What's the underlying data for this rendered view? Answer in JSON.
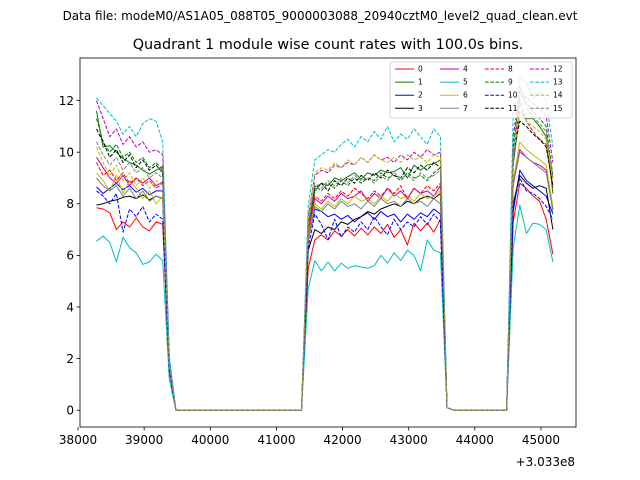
{
  "figure": {
    "suptitle": "Data file: modeM0/AS1A05_088T05_9000003088_20940cztM0_level2_quad_clean.evt",
    "offset_label": "+3.033e8"
  },
  "chart_data": {
    "type": "line",
    "title": "Quadrant 1 module wise count rates with 100.0s bins.",
    "xlabel": "",
    "ylabel": "",
    "x_offset": 303300000,
    "xlim": [
      38030,
      45530
    ],
    "ylim": [
      -0.65,
      13.65
    ],
    "xticks": [
      38000,
      39000,
      40000,
      41000,
      42000,
      43000,
      44000,
      45000
    ],
    "xtick_labels": [
      "38000",
      "39000",
      "40000",
      "41000",
      "42000",
      "43000",
      "44000",
      "45000"
    ],
    "yticks": [
      0,
      2,
      4,
      6,
      8,
      10,
      12
    ],
    "ytick_labels": [
      "0",
      "2",
      "4",
      "6",
      "8",
      "10",
      "12"
    ],
    "grid": false,
    "legend_position": "top-right",
    "legend_columns": 4,
    "x": [
      38280,
      38380,
      38480,
      38580,
      38680,
      38780,
      38880,
      38980,
      39080,
      39180,
      39280,
      39380,
      39480,
      39580,
      39680,
      39780,
      39880,
      39980,
      40080,
      40180,
      40280,
      40380,
      40480,
      40580,
      40680,
      40780,
      40880,
      40980,
      41080,
      41180,
      41280,
      41380,
      41480,
      41580,
      41680,
      41780,
      41880,
      41980,
      42080,
      42180,
      42280,
      42380,
      42480,
      42580,
      42680,
      42780,
      42880,
      42980,
      43080,
      43180,
      43280,
      43380,
      43480,
      43580,
      43680,
      43780,
      43880,
      43980,
      44080,
      44180,
      44280,
      44380,
      44480,
      44580,
      44680,
      44780,
      44880,
      44980,
      45080,
      45180
    ],
    "series": [
      {
        "name": "0",
        "color": "#ff0000",
        "dash": "solid",
        "values": [
          7.85,
          7.8,
          7.65,
          7.0,
          7.3,
          7.1,
          7.45,
          7.1,
          6.95,
          7.3,
          7.2,
          1.6,
          0,
          0,
          0,
          0,
          0,
          0,
          0,
          0,
          0,
          0,
          0,
          0,
          0,
          0,
          0,
          0,
          0,
          0,
          0,
          0,
          5.5,
          6.6,
          6.8,
          6.6,
          6.95,
          6.75,
          7.0,
          6.75,
          7.05,
          6.8,
          7.1,
          6.85,
          7.2,
          6.7,
          7.0,
          6.4,
          7.25,
          6.95,
          7.25,
          6.9,
          7.4,
          0.1,
          0,
          0,
          0,
          0,
          0,
          0,
          0,
          0,
          0,
          7.3,
          8.8,
          8.6,
          8.3,
          8.1,
          7.4,
          6.05
        ]
      },
      {
        "name": "1",
        "color": "#008000",
        "dash": "solid",
        "values": [
          11.6,
          10.2,
          10.25,
          10.0,
          9.75,
          9.6,
          9.5,
          9.3,
          9.15,
          9.3,
          9.45,
          1.9,
          0,
          0,
          0,
          0,
          0,
          0,
          0,
          0,
          0,
          0,
          0,
          0,
          0,
          0,
          0,
          0,
          0,
          0,
          0,
          0,
          7.0,
          8.5,
          8.8,
          8.7,
          9.0,
          8.9,
          9.05,
          9.2,
          8.95,
          9.2,
          9.1,
          9.3,
          9.2,
          9.25,
          9.4,
          9.0,
          9.5,
          9.3,
          9.5,
          9.55,
          9.7,
          0.1,
          0,
          0,
          0,
          0,
          0,
          0,
          0,
          0,
          0,
          9.5,
          11.6,
          11.3,
          11.3,
          11.0,
          10.6,
          8.4
        ]
      },
      {
        "name": "2",
        "color": "#0000ff",
        "dash": "solid",
        "values": [
          8.65,
          8.4,
          8.6,
          8.8,
          8.55,
          8.7,
          8.45,
          8.6,
          8.35,
          8.5,
          8.5,
          1.7,
          0,
          0,
          0,
          0,
          0,
          0,
          0,
          0,
          0,
          0,
          0,
          0,
          0,
          0,
          0,
          0,
          0,
          0,
          0,
          0,
          6.6,
          7.8,
          7.7,
          7.5,
          7.6,
          7.4,
          7.55,
          7.3,
          7.5,
          7.65,
          7.4,
          7.7,
          7.5,
          7.6,
          7.3,
          7.6,
          7.4,
          7.65,
          7.5,
          7.8,
          7.6,
          0.1,
          0,
          0,
          0,
          0,
          0,
          0,
          0,
          0,
          0,
          7.7,
          9.3,
          8.9,
          8.7,
          8.5,
          8.3,
          7.6
        ]
      },
      {
        "name": "3",
        "color": "#000000",
        "dash": "solid",
        "values": [
          7.95,
          8.0,
          8.1,
          8.15,
          8.25,
          8.3,
          8.2,
          8.35,
          8.15,
          8.3,
          8.2,
          1.6,
          0,
          0,
          0,
          0,
          0,
          0,
          0,
          0,
          0,
          0,
          0,
          0,
          0,
          0,
          0,
          0,
          0,
          0,
          0,
          0,
          6.2,
          7.0,
          6.85,
          7.1,
          7.0,
          7.3,
          7.2,
          7.4,
          7.5,
          7.7,
          7.6,
          7.8,
          7.9,
          8.0,
          7.9,
          8.1,
          8.0,
          8.2,
          8.3,
          8.2,
          8.4,
          0.1,
          0,
          0,
          0,
          0,
          0,
          0,
          0,
          0,
          0,
          8.0,
          9.1,
          8.8,
          8.6,
          8.7,
          8.6,
          7.0
        ]
      },
      {
        "name": "4",
        "color": "#bf00bf",
        "dash": "solid",
        "values": [
          9.8,
          9.4,
          9.0,
          8.8,
          9.1,
          8.7,
          9.0,
          8.8,
          9.0,
          8.7,
          8.85,
          1.8,
          0,
          0,
          0,
          0,
          0,
          0,
          0,
          0,
          0,
          0,
          0,
          0,
          0,
          0,
          0,
          0,
          0,
          0,
          0,
          0,
          6.9,
          8.2,
          8.0,
          8.3,
          8.1,
          8.4,
          8.2,
          8.3,
          8.5,
          8.1,
          8.4,
          8.2,
          8.6,
          8.3,
          8.5,
          8.2,
          8.6,
          8.4,
          8.5,
          8.3,
          8.7,
          0.1,
          0,
          0,
          0,
          0,
          0,
          0,
          0,
          0,
          0,
          8.8,
          10.1,
          9.8,
          9.6,
          9.5,
          9.3,
          7.8
        ]
      },
      {
        "name": "5",
        "color": "#00bfbf",
        "dash": "solid",
        "values": [
          6.55,
          6.75,
          6.5,
          5.75,
          6.7,
          6.3,
          6.1,
          5.65,
          5.75,
          6.05,
          5.8,
          1.2,
          0,
          0,
          0,
          0,
          0,
          0,
          0,
          0,
          0,
          0,
          0,
          0,
          0,
          0,
          0,
          0,
          0,
          0,
          0,
          0,
          4.7,
          5.8,
          5.4,
          5.75,
          5.4,
          5.7,
          5.5,
          5.6,
          5.55,
          5.5,
          5.6,
          6.0,
          5.7,
          6.1,
          5.8,
          6.2,
          6.0,
          5.4,
          6.6,
          6.2,
          6.1,
          0.1,
          0,
          0,
          0,
          0,
          0,
          0,
          0,
          0,
          0,
          6.3,
          7.95,
          6.85,
          7.25,
          7.2,
          7.0,
          5.75
        ]
      },
      {
        "name": "6",
        "color": "#bfbf00",
        "dash": "solid",
        "values": [
          9.2,
          8.9,
          8.5,
          9.1,
          8.4,
          8.9,
          8.6,
          8.2,
          8.5,
          8.0,
          8.3,
          1.7,
          0,
          0,
          0,
          0,
          0,
          0,
          0,
          0,
          0,
          0,
          0,
          0,
          0,
          0,
          0,
          0,
          0,
          0,
          0,
          0,
          6.7,
          8.0,
          7.8,
          8.1,
          7.9,
          8.2,
          8.0,
          8.3,
          8.1,
          8.2,
          8.0,
          8.3,
          8.1,
          8.4,
          8.2,
          8.3,
          8.1,
          8.4,
          8.2,
          8.3,
          8.5,
          0.1,
          0,
          0,
          0,
          0,
          0,
          0,
          0,
          0,
          0,
          8.9,
          10.4,
          10.1,
          9.9,
          9.7,
          9.5,
          7.9
        ]
      },
      {
        "name": "7",
        "color": "#808080",
        "dash": "solid",
        "values": [
          9.0,
          8.7,
          8.5,
          8.7,
          8.3,
          8.6,
          8.2,
          8.5,
          8.1,
          8.3,
          8.2,
          1.7,
          0,
          0,
          0,
          0,
          0,
          0,
          0,
          0,
          0,
          0,
          0,
          0,
          0,
          0,
          0,
          0,
          0,
          0,
          0,
          0,
          6.6,
          7.9,
          7.7,
          8.0,
          7.8,
          8.1,
          7.9,
          8.0,
          7.8,
          8.1,
          7.9,
          8.2,
          8.0,
          8.1,
          7.9,
          8.2,
          8.0,
          8.1,
          7.9,
          8.2,
          8.0,
          0.1,
          0,
          0,
          0,
          0,
          0,
          0,
          0,
          0,
          0,
          8.7,
          10.0,
          9.8,
          9.6,
          9.4,
          9.2,
          7.7
        ]
      },
      {
        "name": "8",
        "color": "#ff0000",
        "dash": "dashed",
        "values": [
          9.6,
          9.1,
          9.3,
          8.9,
          9.2,
          8.8,
          9.0,
          8.7,
          8.9,
          8.6,
          8.8,
          1.8,
          0,
          0,
          0,
          0,
          0,
          0,
          0,
          0,
          0,
          0,
          0,
          0,
          0,
          0,
          0,
          0,
          0,
          0,
          0,
          0,
          6.9,
          8.3,
          8.1,
          8.4,
          8.2,
          8.5,
          8.3,
          8.6,
          8.4,
          8.2,
          8.5,
          8.3,
          8.6,
          8.4,
          8.7,
          8.2,
          8.6,
          8.4,
          8.7,
          8.5,
          8.8,
          0.1,
          0,
          0,
          0,
          0,
          0,
          0,
          0,
          0,
          0,
          9.6,
          12.0,
          11.2,
          10.8,
          10.5,
          10.3,
          8.6
        ]
      },
      {
        "name": "9",
        "color": "#008000",
        "dash": "dashed",
        "values": [
          11.3,
          10.4,
          10.0,
          10.3,
          9.8,
          10.0,
          9.6,
          9.8,
          9.4,
          9.6,
          9.3,
          1.9,
          0,
          0,
          0,
          0,
          0,
          0,
          0,
          0,
          0,
          0,
          0,
          0,
          0,
          0,
          0,
          0,
          0,
          0,
          0,
          0,
          7.2,
          8.7,
          8.5,
          8.8,
          8.6,
          8.9,
          8.7,
          9.0,
          8.8,
          9.0,
          8.9,
          9.2,
          9.0,
          9.1,
          8.9,
          9.2,
          9.0,
          9.1,
          8.9,
          9.2,
          9.4,
          0.1,
          0,
          0,
          0,
          0,
          0,
          0,
          0,
          0,
          0,
          10.2,
          12.3,
          11.9,
          11.6,
          11.3,
          11.0,
          9.1
        ]
      },
      {
        "name": "10",
        "color": "#0000ff",
        "dash": "dashed",
        "values": [
          8.5,
          8.3,
          8.0,
          8.4,
          6.9,
          7.8,
          7.5,
          7.9,
          7.3,
          7.6,
          7.4,
          1.5,
          0,
          0,
          0,
          0,
          0,
          0,
          0,
          0,
          0,
          0,
          0,
          0,
          0,
          0,
          0,
          0,
          0,
          0,
          0,
          0,
          6.3,
          7.6,
          7.2,
          6.6,
          7.4,
          6.7,
          7.1,
          6.9,
          7.3,
          7.0,
          7.5,
          7.1,
          6.8,
          7.4,
          7.0,
          7.3,
          7.1,
          7.5,
          7.2,
          7.6,
          7.3,
          0.1,
          0,
          0,
          0,
          0,
          0,
          0,
          0,
          0,
          0,
          7.9,
          9.0,
          8.5,
          8.4,
          8.2,
          7.9,
          7.4
        ]
      },
      {
        "name": "11",
        "color": "#000000",
        "dash": "dashed",
        "values": [
          10.9,
          10.4,
          9.8,
          10.1,
          9.6,
          9.9,
          9.4,
          9.7,
          9.3,
          9.5,
          9.2,
          1.9,
          0,
          0,
          0,
          0,
          0,
          0,
          0,
          0,
          0,
          0,
          0,
          0,
          0,
          0,
          0,
          0,
          0,
          0,
          0,
          0,
          7.2,
          8.6,
          8.8,
          8.5,
          8.9,
          8.7,
          9.0,
          8.8,
          9.1,
          8.9,
          9.2,
          9.0,
          9.3,
          9.1,
          9.0,
          9.4,
          9.2,
          9.5,
          9.3,
          9.6,
          9.4,
          0.1,
          0,
          0,
          0,
          0,
          0,
          0,
          0,
          0,
          0,
          9.9,
          11.2,
          11.0,
          10.7,
          10.5,
          10.2,
          8.7
        ]
      },
      {
        "name": "12",
        "color": "#bf00bf",
        "dash": "dashed",
        "values": [
          12.0,
          11.3,
          10.6,
          10.9,
          10.3,
          10.6,
          10.2,
          10.4,
          10.0,
          10.1,
          9.9,
          2.0,
          0,
          0,
          0,
          0,
          0,
          0,
          0,
          0,
          0,
          0,
          0,
          0,
          0,
          0,
          0,
          0,
          0,
          0,
          0,
          0,
          7.5,
          9.1,
          9.3,
          9.2,
          9.5,
          9.4,
          9.6,
          9.5,
          9.8,
          9.6,
          9.9,
          9.7,
          9.8,
          9.6,
          9.9,
          9.7,
          10.0,
          9.8,
          10.1,
          9.9,
          10.0,
          0.1,
          0,
          0,
          0,
          0,
          0,
          0,
          0,
          0,
          0,
          10.6,
          12.4,
          12.1,
          11.9,
          11.7,
          11.4,
          9.6
        ]
      },
      {
        "name": "13",
        "color": "#00bfbf",
        "dash": "dashed",
        "values": [
          12.1,
          11.8,
          11.5,
          11.2,
          10.7,
          11.0,
          10.6,
          11.1,
          11.3,
          11.2,
          10.4,
          2.1,
          0,
          0,
          0,
          0,
          0,
          0,
          0,
          0,
          0,
          0,
          0,
          0,
          0,
          0,
          0,
          0,
          0,
          0,
          0,
          0,
          7.9,
          9.7,
          9.9,
          10.1,
          10.0,
          10.3,
          10.5,
          10.2,
          10.6,
          10.4,
          10.8,
          10.5,
          11.0,
          10.4,
          10.7,
          10.5,
          10.9,
          10.6,
          10.3,
          10.9,
          10.6,
          0.1,
          0,
          0,
          0,
          0,
          0,
          0,
          0,
          0,
          0,
          11.5,
          12.9,
          12.7,
          12.1,
          12.3,
          12.0,
          10.2
        ]
      },
      {
        "name": "14",
        "color": "#bfbf00",
        "dash": "dashed",
        "values": [
          10.2,
          9.6,
          9.1,
          9.5,
          8.9,
          9.2,
          8.7,
          9.0,
          8.6,
          8.9,
          8.7,
          1.8,
          0,
          0,
          0,
          0,
          0,
          0,
          0,
          0,
          0,
          0,
          0,
          0,
          0,
          0,
          0,
          0,
          0,
          0,
          0,
          0,
          7.3,
          9.2,
          9.4,
          9.3,
          9.6,
          9.4,
          9.7,
          9.5,
          9.8,
          9.6,
          9.9,
          9.7,
          9.6,
          9.8,
          9.6,
          9.9,
          9.7,
          9.8,
          9.6,
          9.9,
          9.8,
          0.1,
          0,
          0,
          0,
          0,
          0,
          0,
          0,
          0,
          0,
          9.8,
          11.6,
          11.2,
          11.0,
          10.8,
          10.5,
          8.9
        ]
      },
      {
        "name": "15",
        "color": "#808080",
        "dash": "dashed",
        "values": [
          10.4,
          9.9,
          9.5,
          9.8,
          9.3,
          9.6,
          9.2,
          9.4,
          9.0,
          9.2,
          9.0,
          1.8,
          0,
          0,
          0,
          0,
          0,
          0,
          0,
          0,
          0,
          0,
          0,
          0,
          0,
          0,
          0,
          0,
          0,
          0,
          0,
          0,
          7.1,
          8.8,
          8.6,
          8.9,
          8.7,
          9.0,
          8.8,
          9.1,
          8.9,
          9.0,
          8.8,
          9.1,
          8.9,
          9.2,
          9.0,
          9.1,
          8.9,
          9.2,
          9.0,
          9.1,
          9.3,
          0.1,
          0,
          0,
          0,
          0,
          0,
          0,
          0,
          0,
          0,
          9.7,
          12.6,
          11.7,
          11.4,
          11.1,
          10.8,
          9.0
        ]
      }
    ]
  }
}
